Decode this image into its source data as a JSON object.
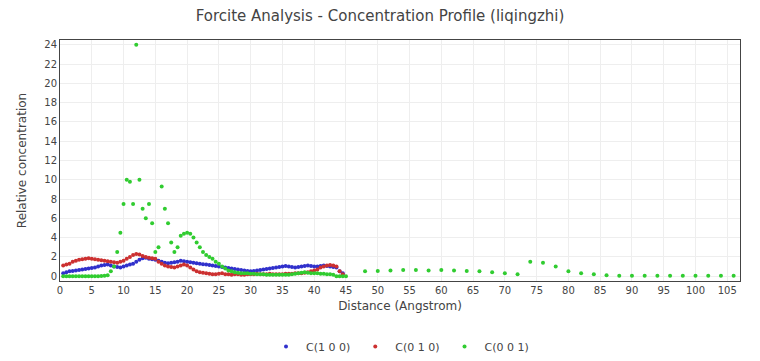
{
  "chart_data": {
    "type": "scatter",
    "title": "Forcite Analysis - Concentration Profile (liqingzhi)",
    "x_label": "Distance (Angstrom)",
    "y_label": "Relative concentration",
    "xlim": [
      0,
      107
    ],
    "ylim": [
      -0.5,
      24.5
    ],
    "xticks": [
      0,
      5,
      10,
      15,
      20,
      25,
      30,
      35,
      40,
      45,
      50,
      55,
      60,
      65,
      70,
      75,
      80,
      85,
      90,
      95,
      100,
      105
    ],
    "yticks": [
      0,
      2,
      4,
      6,
      8,
      10,
      12,
      14,
      16,
      18,
      20,
      22,
      24
    ],
    "grid": true,
    "legend": "bottom",
    "marker": "circle",
    "series": [
      {
        "name": "C(1 0 0)",
        "color": "#3030cc",
        "x": [
          0.5,
          1.0,
          1.5,
          2.0,
          2.5,
          3.0,
          3.5,
          4.0,
          4.5,
          5.0,
          5.5,
          6.0,
          6.5,
          7.0,
          7.5,
          8.0,
          8.5,
          9.0,
          9.5,
          10.0,
          10.5,
          11.0,
          11.5,
          12.0,
          12.5,
          13.0,
          13.5,
          14.0,
          14.5,
          15.0,
          15.5,
          16.0,
          16.5,
          17.0,
          17.5,
          18.0,
          18.5,
          19.0,
          19.5,
          20.0,
          20.5,
          21.0,
          21.5,
          22.0,
          22.5,
          23.0,
          23.5,
          24.0,
          24.5,
          25.0,
          25.5,
          26.0,
          26.5,
          27.0,
          27.5,
          28.0,
          28.5,
          29.0,
          29.5,
          30.0,
          30.5,
          31.0,
          31.5,
          32.0,
          32.5,
          33.0,
          33.5,
          34.0,
          34.5,
          35.0,
          35.5,
          36.0,
          36.5,
          37.0,
          37.5,
          38.0,
          38.5,
          39.0,
          39.5,
          40.0,
          40.5,
          41.0,
          41.5,
          42.0,
          42.5,
          43.0,
          43.5,
          44.0,
          44.5
        ],
        "values": [
          0.3,
          0.4,
          0.5,
          0.55,
          0.6,
          0.65,
          0.7,
          0.75,
          0.8,
          0.85,
          0.9,
          1.0,
          1.1,
          1.15,
          1.2,
          1.1,
          1.0,
          0.95,
          0.9,
          1.0,
          1.1,
          1.2,
          1.3,
          1.5,
          1.7,
          1.85,
          1.9,
          1.8,
          1.75,
          1.7,
          1.6,
          1.5,
          1.4,
          1.35,
          1.4,
          1.45,
          1.5,
          1.6,
          1.55,
          1.5,
          1.45,
          1.4,
          1.35,
          1.3,
          1.25,
          1.2,
          1.15,
          1.1,
          1.05,
          1.0,
          0.95,
          0.9,
          0.85,
          0.8,
          0.75,
          0.7,
          0.65,
          0.6,
          0.55,
          0.5,
          0.55,
          0.6,
          0.65,
          0.7,
          0.75,
          0.8,
          0.85,
          0.9,
          0.95,
          1.0,
          1.05,
          1.0,
          0.95,
          0.9,
          0.95,
          1.0,
          1.05,
          1.1,
          1.05,
          1.0,
          1.0,
          1.05,
          1.1,
          1.05,
          1.0,
          0.95,
          0.9,
          0.5,
          0.3
        ]
      },
      {
        "name": "C(0 1 0)",
        "color": "#cc3030",
        "x": [
          0.5,
          1.0,
          1.5,
          2.0,
          2.5,
          3.0,
          3.5,
          4.0,
          4.5,
          5.0,
          5.5,
          6.0,
          6.5,
          7.0,
          7.5,
          8.0,
          8.5,
          9.0,
          9.5,
          10.0,
          10.5,
          11.0,
          11.5,
          12.0,
          12.5,
          13.0,
          13.5,
          14.0,
          14.5,
          15.0,
          15.5,
          16.0,
          16.5,
          17.0,
          17.5,
          18.0,
          18.5,
          19.0,
          19.5,
          20.0,
          20.5,
          21.0,
          21.5,
          22.0,
          22.5,
          23.0,
          23.5,
          24.0,
          24.5,
          25.0,
          25.5,
          26.0,
          26.5,
          27.0,
          27.5,
          28.0,
          28.5,
          29.0,
          29.5,
          30.0,
          30.5,
          31.0,
          31.5,
          32.0,
          32.5,
          33.0,
          33.5,
          34.0,
          34.5,
          35.0,
          35.5,
          36.0,
          36.5,
          37.0,
          37.5,
          38.0,
          38.5,
          39.0,
          39.5,
          40.0,
          40.5,
          41.0,
          41.5,
          42.0,
          42.5,
          43.0,
          43.5,
          44.0,
          44.5
        ],
        "values": [
          1.1,
          1.2,
          1.3,
          1.5,
          1.6,
          1.7,
          1.75,
          1.8,
          1.85,
          1.8,
          1.75,
          1.7,
          1.65,
          1.6,
          1.55,
          1.5,
          1.45,
          1.4,
          1.5,
          1.6,
          1.8,
          2.0,
          2.2,
          2.3,
          2.25,
          2.1,
          2.0,
          1.9,
          1.85,
          1.8,
          1.5,
          1.3,
          1.1,
          1.0,
          0.95,
          0.9,
          1.0,
          1.1,
          1.2,
          1.1,
          0.9,
          0.7,
          0.5,
          0.4,
          0.35,
          0.3,
          0.25,
          0.2,
          0.2,
          0.25,
          0.3,
          0.2,
          0.2,
          0.15,
          0.2,
          0.2,
          0.15,
          0.15,
          0.2,
          0.2,
          0.2,
          0.25,
          0.2,
          0.2,
          0.2,
          0.25,
          0.2,
          0.2,
          0.2,
          0.2,
          0.25,
          0.25,
          0.25,
          0.3,
          0.3,
          0.3,
          0.35,
          0.4,
          0.5,
          0.6,
          0.7,
          0.9,
          1.0,
          1.1,
          1.15,
          1.1,
          1.0,
          0.5,
          0.2
        ]
      },
      {
        "name": "C(0 0 1)",
        "color": "#30cc30",
        "x": [
          0.5,
          1.0,
          1.5,
          2.0,
          2.5,
          3.0,
          3.5,
          4.0,
          4.5,
          5.0,
          5.5,
          6.0,
          6.5,
          7.0,
          7.5,
          8.0,
          8.5,
          9.0,
          9.5,
          10.0,
          10.5,
          11.0,
          11.5,
          12.0,
          12.5,
          13.0,
          13.5,
          14.0,
          14.5,
          15.0,
          15.5,
          16.0,
          16.5,
          17.0,
          17.5,
          18.0,
          18.5,
          19.0,
          19.5,
          20.0,
          20.5,
          21.0,
          21.5,
          22.0,
          22.5,
          23.0,
          23.5,
          24.0,
          24.5,
          25.0,
          25.5,
          26.0,
          26.5,
          27.0,
          27.5,
          28.0,
          28.5,
          29.0,
          29.5,
          30.0,
          30.5,
          31.0,
          31.5,
          32.0,
          32.5,
          33.0,
          33.5,
          34.0,
          34.5,
          35.0,
          35.5,
          36.0,
          36.5,
          37.0,
          37.5,
          38.0,
          38.5,
          39.0,
          39.5,
          40.0,
          40.5,
          41.0,
          41.5,
          42.0,
          42.5,
          43.0,
          43.5,
          44.0,
          44.5,
          45.0,
          48.0,
          50.0,
          52.0,
          54.0,
          56.0,
          58.0,
          60.0,
          62.0,
          64.0,
          66.0,
          68.0,
          70.0,
          72.0,
          74.0,
          76.0,
          78.0,
          80.0,
          82.0,
          84.0,
          86.0,
          88.0,
          90.0,
          92.0,
          94.0,
          96.0,
          98.0,
          100.0,
          102.0,
          104.0,
          106.0
        ],
        "values": [
          0.0,
          0.0,
          0.0,
          0.0,
          0.0,
          0.0,
          0.0,
          0.0,
          0.0,
          0.0,
          0.0,
          0.0,
          0.02,
          0.05,
          0.1,
          0.5,
          1.0,
          2.5,
          4.5,
          7.5,
          10.0,
          9.8,
          7.5,
          24.0,
          10.0,
          7.0,
          6.0,
          7.5,
          5.5,
          2.5,
          3.0,
          9.3,
          7.0,
          5.5,
          3.5,
          2.5,
          3.0,
          4.2,
          4.4,
          4.5,
          4.4,
          4.0,
          3.5,
          3.0,
          2.5,
          2.2,
          2.0,
          1.8,
          1.5,
          1.3,
          1.0,
          0.8,
          0.6,
          0.5,
          0.4,
          0.35,
          0.3,
          0.3,
          0.3,
          0.25,
          0.25,
          0.2,
          0.2,
          0.2,
          0.15,
          0.15,
          0.15,
          0.15,
          0.15,
          0.15,
          0.15,
          0.15,
          0.2,
          0.25,
          0.3,
          0.35,
          0.4,
          0.35,
          0.3,
          0.3,
          0.3,
          0.25,
          0.25,
          0.2,
          0.2,
          0.15,
          0.0,
          0.0,
          0.0,
          0.0,
          0.5,
          0.55,
          0.6,
          0.65,
          0.65,
          0.6,
          0.65,
          0.6,
          0.55,
          0.5,
          0.4,
          0.3,
          0.2,
          1.5,
          1.4,
          1.0,
          0.5,
          0.3,
          0.2,
          0.1,
          0.05,
          0.05,
          0.05,
          0.05,
          0.05,
          0.05,
          0.05,
          0.05,
          0.05,
          0.05
        ]
      }
    ]
  }
}
